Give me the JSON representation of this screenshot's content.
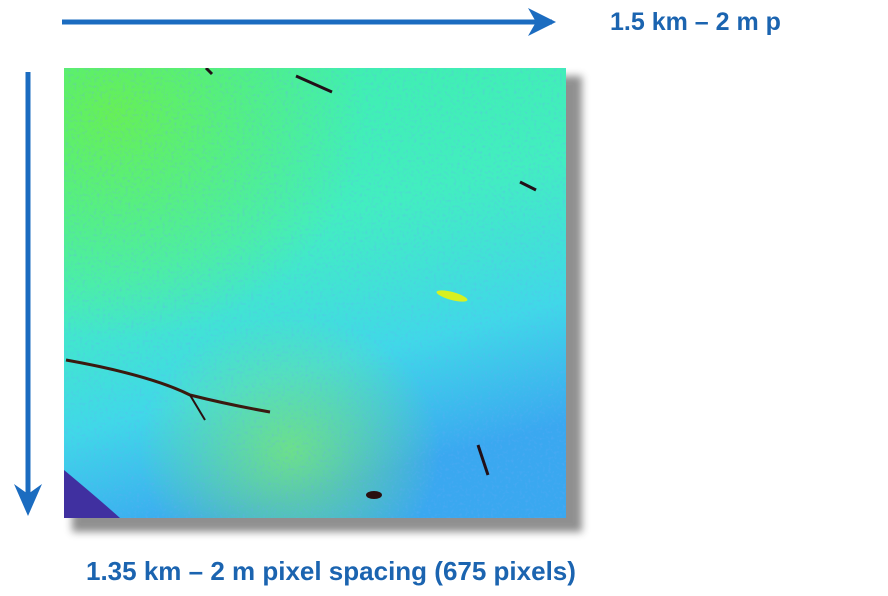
{
  "labels": {
    "horizontal": "1.5 km – 2 m p",
    "vertical": "1.35 km – 2 m pixel spacing (675 pixels)"
  }
}
